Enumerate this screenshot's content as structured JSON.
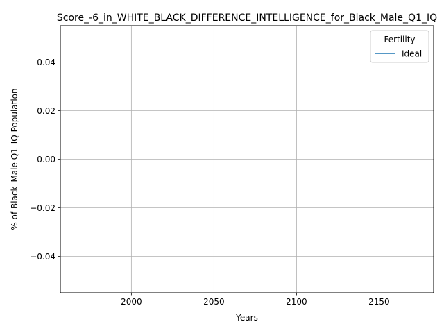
{
  "chart_data": {
    "type": "line",
    "title": "Score_-6_in_WHITE_BLACK_DIFFERENCE_INTELLIGENCE_for_Black_Male_Q1_IQ",
    "xlabel": "Years",
    "ylabel": "% of Black_Male Q1_IQ Population",
    "xlim": [
      1957,
      2183
    ],
    "ylim": [
      -0.055,
      0.055
    ],
    "xticks": [
      2000,
      2050,
      2100,
      2150
    ],
    "yticks": [
      -0.04,
      -0.02,
      0.0,
      0.02,
      0.04
    ],
    "ytick_labels": [
      "−0.04",
      "−0.02",
      "0.00",
      "0.02",
      "0.04"
    ],
    "grid": true,
    "legend": {
      "title": "Fertility",
      "placement": "top-right",
      "entries": [
        {
          "name": "Ideal",
          "color": "#1f77b4"
        }
      ]
    },
    "series": [
      {
        "name": "Ideal",
        "color": "#1f77b4",
        "x": [],
        "y": []
      }
    ]
  }
}
